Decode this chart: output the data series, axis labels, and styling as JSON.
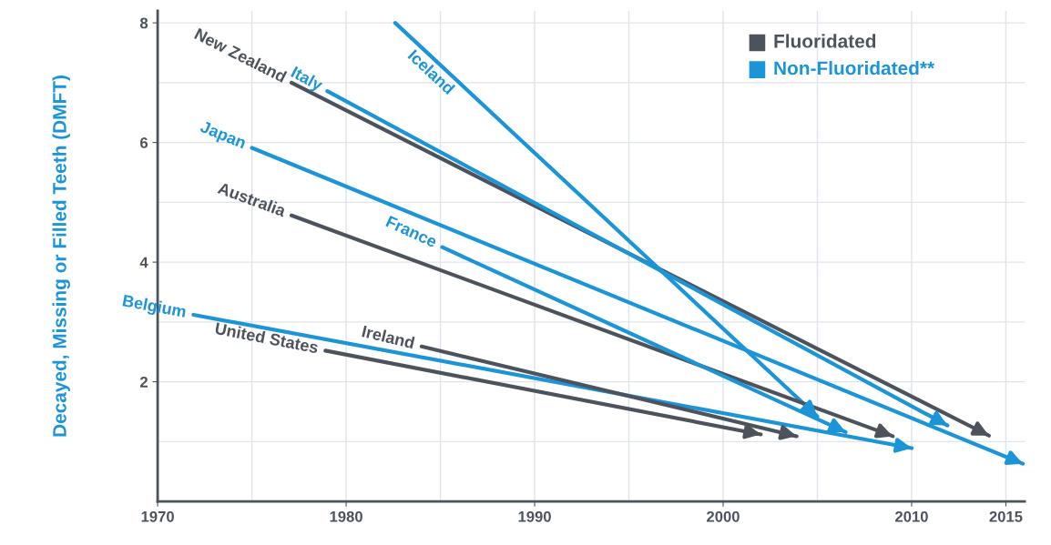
{
  "chart_data": {
    "type": "line",
    "ylabel": "Decayed, Missing or Filled Teeth (DMFT)",
    "xlim": [
      1970,
      2016
    ],
    "ylim": [
      0,
      8.2
    ],
    "xticks": [
      1970,
      1980,
      1990,
      2000,
      2010,
      2015
    ],
    "yticks": [
      2,
      4,
      6,
      8
    ],
    "grid": true,
    "annotations": [
      "Fluoridated",
      "Non-Fluoridated**"
    ],
    "series": [
      {
        "name": "New Zealand",
        "color": "#4d535c",
        "x": [
          1977.1,
          2014.1
        ],
        "values": [
          7.0,
          1.1
        ]
      },
      {
        "name": "Italy",
        "color": "#1b95d8",
        "x": [
          1979.0,
          2011.9
        ],
        "values": [
          6.86,
          1.27
        ]
      },
      {
        "name": "Iceland",
        "color": "#1b95d8",
        "x": [
          1982.6,
          2005.0
        ],
        "values": [
          8.0,
          1.42
        ]
      },
      {
        "name": "Japan",
        "color": "#1b95d8",
        "x": [
          1975.0,
          2015.9
        ],
        "values": [
          5.91,
          0.63
        ]
      },
      {
        "name": "Australia",
        "color": "#4d535c",
        "x": [
          1977.1,
          2009.0
        ],
        "values": [
          4.78,
          1.09
        ]
      },
      {
        "name": "France",
        "color": "#1b95d8",
        "x": [
          1985.1,
          2006.5
        ],
        "values": [
          4.25,
          1.16
        ]
      },
      {
        "name": "Belgium",
        "color": "#1b95d8",
        "x": [
          1971.9,
          2010.0
        ],
        "values": [
          3.12,
          0.89
        ]
      },
      {
        "name": "Ireland",
        "color": "#4d535c",
        "x": [
          1984.0,
          2003.9
        ],
        "values": [
          2.59,
          1.09
        ]
      },
      {
        "name": "United States",
        "color": "#4d535c",
        "x": [
          1978.9,
          2002.0
        ],
        "values": [
          2.52,
          1.12
        ]
      }
    ]
  }
}
